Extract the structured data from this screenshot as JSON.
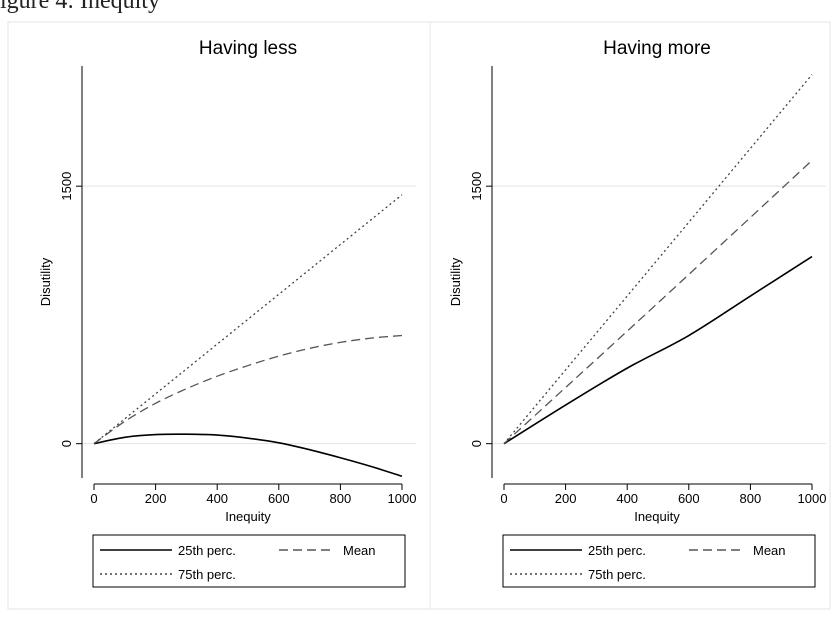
{
  "figure": {
    "caption": "igure 4: Inequity"
  },
  "chart_data": [
    {
      "type": "line",
      "title": "Having less",
      "xlabel": "Inequity",
      "ylabel": "Disutility",
      "xlim": [
        0,
        1000
      ],
      "ylim": [
        -200,
        2200
      ],
      "xticks": [
        0,
        200,
        400,
        600,
        800,
        1000
      ],
      "yticks": [
        0,
        1500
      ],
      "grid": "horizontal at y ticks",
      "legend_position": "bottom",
      "series": [
        {
          "name": "25th perc.",
          "style": "solid",
          "color": "#000000",
          "x": [
            0,
            100,
            200,
            300,
            400,
            500,
            600,
            700,
            800,
            900,
            1000
          ],
          "y": [
            0,
            37,
            53,
            55,
            50,
            32,
            5,
            -35,
            -82,
            -133,
            -190
          ]
        },
        {
          "name": "Mean",
          "style": "dashed",
          "color": "#555555",
          "x": [
            0,
            100,
            200,
            300,
            400,
            500,
            600,
            700,
            800,
            900,
            1000
          ],
          "y": [
            0,
            130,
            235,
            320,
            393,
            455,
            510,
            555,
            590,
            615,
            630
          ]
        },
        {
          "name": "75th perc.",
          "style": "dotted",
          "color": "#444444",
          "x": [
            0,
            1000
          ],
          "y": [
            0,
            1450
          ]
        }
      ]
    },
    {
      "type": "line",
      "title": "Having more",
      "xlabel": "Inequity",
      "ylabel": "Disutility",
      "xlim": [
        0,
        1000
      ],
      "ylim": [
        -200,
        2200
      ],
      "xticks": [
        0,
        200,
        400,
        600,
        800,
        1000
      ],
      "yticks": [
        0,
        1500
      ],
      "grid": "horizontal at y ticks",
      "legend_position": "bottom",
      "series": [
        {
          "name": "25th perc.",
          "style": "solid",
          "color": "#000000",
          "x": [
            0,
            200,
            400,
            600,
            800,
            1000
          ],
          "y": [
            0,
            225,
            440,
            630,
            860,
            1090
          ]
        },
        {
          "name": "Mean",
          "style": "dashed",
          "color": "#555555",
          "x": [
            0,
            500,
            1000
          ],
          "y": [
            0,
            820,
            1650
          ]
        },
        {
          "name": "75th perc.",
          "style": "dotted",
          "color": "#444444",
          "x": [
            0,
            1000
          ],
          "y": [
            0,
            2150
          ]
        }
      ]
    }
  ]
}
